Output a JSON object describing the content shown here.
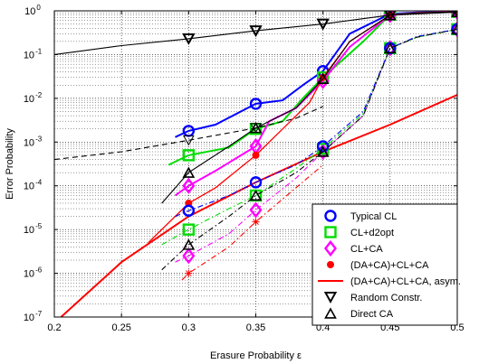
{
  "chart_data": {
    "type": "line",
    "xlabel": "Erasure Probability ε",
    "ylabel": "Error Probability",
    "xlim": [
      0.2,
      0.5
    ],
    "ylim_log10": [
      -7,
      0
    ],
    "yscale": "log",
    "grid": true,
    "xticks": [
      "0.2",
      "0.25",
      "0.3",
      "0.35",
      "0.4",
      "0.45",
      "0.5"
    ],
    "yticks": [
      "10^-7",
      "10^-6",
      "10^-5",
      "10^-4",
      "10^-3",
      "10^-2",
      "10^-1",
      "10^0"
    ],
    "ytick_labels": [
      {
        "base": "10",
        "exp": "-7"
      },
      {
        "base": "10",
        "exp": "-6"
      },
      {
        "base": "10",
        "exp": "-5"
      },
      {
        "base": "10",
        "exp": "-4"
      },
      {
        "base": "10",
        "exp": "-3"
      },
      {
        "base": "10",
        "exp": "-2"
      },
      {
        "base": "10",
        "exp": "-1"
      },
      {
        "base": "10",
        "exp": "0"
      }
    ],
    "legend_position": "bottom-right",
    "legend": [
      {
        "label": "Typical CL",
        "color": "#0000ff",
        "marker": "circle-open",
        "line": false
      },
      {
        "label": "CL+d2opt",
        "color": "#00dd00",
        "marker": "square-open",
        "line": false
      },
      {
        "label": "CL+CA",
        "color": "#ff00ff",
        "marker": "diamond-open",
        "line": false
      },
      {
        "label": "(DA+CA)+CL+CA",
        "color": "#ff0000",
        "marker": "dot",
        "line": false
      },
      {
        "label": "(DA+CA)+CL+CA, asym.",
        "color": "#ff0000",
        "marker": "none",
        "line": true
      },
      {
        "label": "Random Constr.",
        "color": "#000000",
        "marker": "triangle-down",
        "line": false
      },
      {
        "label": "Direct CA",
        "color": "#000000",
        "marker": "triangle-up",
        "line": false
      }
    ],
    "series": [
      {
        "name": "Typical CL",
        "color": "#0000ff",
        "style": "solid",
        "width": 2,
        "marker": "circle",
        "markers_at": [
          0.3,
          0.35,
          0.4,
          0.45,
          0.5
        ],
        "x": [
          0.29,
          0.3,
          0.32,
          0.35,
          0.37,
          0.385,
          0.4,
          0.42,
          0.45,
          0.47,
          0.5
        ],
        "y": [
          0.0013,
          0.0018,
          0.0025,
          0.0075,
          0.009,
          0.02,
          0.042,
          0.3,
          0.85,
          0.92,
          0.95
        ]
      },
      {
        "name": "CL+d2opt",
        "color": "#00dd00",
        "style": "solid",
        "width": 2,
        "marker": "square",
        "markers_at": [
          0.3,
          0.35,
          0.4,
          0.45,
          0.5
        ],
        "x": [
          0.285,
          0.3,
          0.33,
          0.35,
          0.37,
          0.385,
          0.4,
          0.43,
          0.45,
          0.47,
          0.5
        ],
        "y": [
          0.0003,
          0.0005,
          0.00075,
          0.002,
          0.003,
          0.01,
          0.03,
          0.2,
          0.82,
          0.9,
          0.95
        ]
      },
      {
        "name": "CL+CA",
        "color": "#ff00ff",
        "style": "solid",
        "width": 2,
        "marker": "diamond",
        "markers_at": [
          0.3,
          0.35,
          0.4,
          0.45,
          0.5
        ],
        "x": [
          0.29,
          0.3,
          0.32,
          0.35,
          0.36,
          0.38,
          0.4,
          0.42,
          0.45,
          0.47,
          0.5
        ],
        "y": [
          6e-05,
          0.0001,
          0.00022,
          0.0008,
          0.003,
          0.006,
          0.025,
          0.15,
          0.8,
          0.9,
          0.95
        ]
      },
      {
        "name": "(DA+CA)+CL+CA",
        "color": "#ff0000",
        "style": "solid",
        "width": 1.3,
        "marker": "dot",
        "markers_at": [
          0.3,
          0.35,
          0.4,
          0.45,
          0.5
        ],
        "x": [
          0.27,
          0.3,
          0.32,
          0.35,
          0.37,
          0.39,
          0.4,
          0.42,
          0.45,
          0.47,
          0.5
        ],
        "y": [
          5e-06,
          4e-05,
          9e-05,
          0.0005,
          0.002,
          0.008,
          0.03,
          0.2,
          0.8,
          0.9,
          0.95
        ]
      },
      {
        "name": "(DA+CA)+CL+CA, asym.",
        "color": "#ff0000",
        "style": "solid",
        "width": 2,
        "marker": "none",
        "markers_at": [],
        "x": [
          0.205,
          0.25,
          0.3,
          0.35,
          0.4,
          0.45,
          0.5
        ],
        "y": [
          1e-07,
          1.8e-06,
          2e-05,
          0.00012,
          0.0006,
          0.0025,
          0.012
        ]
      },
      {
        "name": "Random Constr.",
        "color": "#000000",
        "style": "solid",
        "width": 1.1,
        "marker": "triangle-down",
        "markers_at": [
          0.3,
          0.35,
          0.4,
          0.45,
          0.5
        ],
        "x": [
          0.2,
          0.25,
          0.3,
          0.35,
          0.4,
          0.45,
          0.5
        ],
        "y": [
          0.1,
          0.16,
          0.23,
          0.35,
          0.5,
          0.8,
          0.93
        ]
      },
      {
        "name": "CL+CA dash-dot",
        "color": "#ff00ff",
        "style": "dashdot",
        "width": 1.1,
        "marker": "diamond",
        "markers_at": [
          0.3,
          0.35,
          0.4,
          0.45,
          0.5
        ],
        "x": [
          0.29,
          0.3,
          0.33,
          0.35,
          0.38,
          0.4,
          0.43,
          0.45,
          0.47,
          0.5
        ],
        "y": [
          1.8e-06,
          2.5e-06,
          8e-06,
          2.8e-05,
          0.00015,
          0.0006,
          0.004,
          0.14,
          0.25,
          0.38
        ]
      },
      {
        "name": "CL+d2opt dash-dot",
        "color": "#00dd00",
        "style": "dashdot",
        "width": 1.1,
        "marker": "square",
        "markers_at": [
          0.3,
          0.35,
          0.4,
          0.45,
          0.5
        ],
        "x": [
          0.28,
          0.3,
          0.33,
          0.35,
          0.38,
          0.4,
          0.43,
          0.45,
          0.47,
          0.5
        ],
        "y": [
          4.5e-06,
          1e-05,
          3e-05,
          6e-05,
          0.00025,
          0.0007,
          0.0045,
          0.14,
          0.25,
          0.38
        ]
      },
      {
        "name": "Typical CL dash-dot",
        "color": "#0000ff",
        "style": "dashdot",
        "width": 1.1,
        "marker": "circle",
        "markers_at": [
          0.3,
          0.35,
          0.4,
          0.45,
          0.5
        ],
        "x": [
          0.29,
          0.3,
          0.33,
          0.35,
          0.38,
          0.4,
          0.43,
          0.45,
          0.47,
          0.5
        ],
        "y": [
          2e-05,
          2.7e-05,
          6e-05,
          0.00012,
          0.0003,
          0.0008,
          0.005,
          0.14,
          0.26,
          0.38
        ]
      },
      {
        "name": "(DA+CA) dash-dot",
        "color": "#ff0000",
        "style": "dashdot",
        "width": 1.1,
        "marker": "star",
        "markers_at": [
          0.3,
          0.35
        ],
        "x": [
          0.295,
          0.3,
          0.33,
          0.35,
          0.37,
          0.4
        ],
        "y": [
          7e-07,
          1e-06,
          4e-06,
          1.5e-05,
          5e-05,
          0.0003
        ]
      },
      {
        "name": "Direct CA dash-dot",
        "color": "#000000",
        "style": "dashdot",
        "width": 1.1,
        "marker": "triangle-up",
        "markers_at": [
          0.3,
          0.35,
          0.4,
          0.45,
          0.5
        ],
        "x": [
          0.28,
          0.3,
          0.33,
          0.35,
          0.38,
          0.4,
          0.43,
          0.45,
          0.47,
          0.5
        ],
        "y": [
          1.2e-06,
          4.5e-06,
          2e-05,
          6e-05,
          0.0002,
          0.0006,
          0.004,
          0.14,
          0.25,
          0.38
        ]
      },
      {
        "name": "Random Constr. dashed",
        "color": "#000000",
        "style": "dashed",
        "width": 1.1,
        "marker": "triangle-down-open",
        "markers_at": [
          0.3,
          0.35
        ],
        "x": [
          0.2,
          0.25,
          0.3,
          0.35,
          0.38,
          0.4
        ],
        "y": [
          0.0004,
          0.0006,
          0.0011,
          0.0021,
          0.0035,
          0.0065
        ]
      },
      {
        "name": "Direct CA solid",
        "color": "#000000",
        "style": "solid",
        "width": 1.1,
        "marker": "triangle-up",
        "markers_at": [
          0.3,
          0.35,
          0.4,
          0.45,
          0.5
        ],
        "x": [
          0.28,
          0.3,
          0.33,
          0.35,
          0.38,
          0.4,
          0.42,
          0.45,
          0.47,
          0.5
        ],
        "y": [
          4e-05,
          0.0002,
          0.0008,
          0.0021,
          0.006,
          0.028,
          0.2,
          0.8,
          0.9,
          0.95
        ]
      }
    ]
  }
}
